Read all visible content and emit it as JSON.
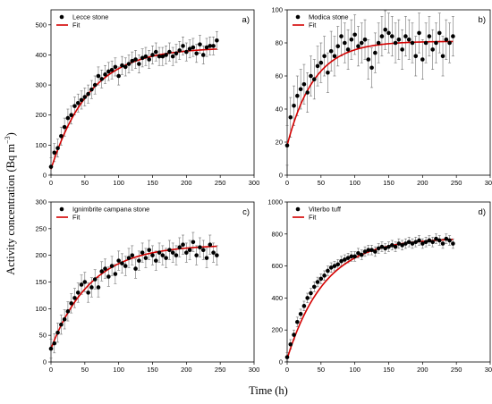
{
  "figure": {
    "ylabel_main": "Activity concentration (Bq m",
    "ylabel_unit_sup": "−3",
    "ylabel_close": ")",
    "xlabel": "Time (h)"
  },
  "legend_fit": "Fit",
  "colors": {
    "points": "#000000",
    "fit": "#d40000",
    "errorbar": "#555555"
  },
  "chart_data": [
    {
      "type": "scatter",
      "panel_label": "a)",
      "series": [
        {
          "name": "Lecce stone",
          "kind": "points",
          "x": [
            0,
            5,
            10,
            15,
            20,
            25,
            30,
            35,
            40,
            45,
            50,
            55,
            60,
            65,
            70,
            75,
            80,
            85,
            90,
            95,
            100,
            105,
            110,
            115,
            120,
            125,
            130,
            135,
            140,
            145,
            150,
            155,
            160,
            165,
            170,
            175,
            180,
            185,
            190,
            195,
            200,
            205,
            210,
            215,
            220,
            225,
            230,
            235,
            240,
            245
          ],
          "y": [
            28,
            75,
            90,
            130,
            160,
            190,
            200,
            230,
            240,
            250,
            260,
            270,
            285,
            300,
            330,
            320,
            335,
            345,
            350,
            360,
            330,
            365,
            360,
            370,
            380,
            385,
            370,
            390,
            395,
            385,
            400,
            410,
            395,
            395,
            400,
            410,
            395,
            405,
            415,
            430,
            410,
            420,
            425,
            405,
            435,
            400,
            425,
            430,
            430,
            448
          ],
          "err": 30
        },
        {
          "name": "Fit",
          "kind": "fit",
          "model": "y = A (1 - exp(-k x)) + B",
          "A": 405,
          "k": 0.0175,
          "B": 20,
          "x_range": [
            0,
            245
          ]
        }
      ],
      "xlim": [
        0,
        300
      ],
      "ylim": [
        0,
        550
      ],
      "xticks": [
        0,
        50,
        100,
        150,
        200,
        250,
        300
      ],
      "yticks": [
        0,
        100,
        200,
        300,
        400,
        500
      ],
      "legend": "top-left"
    },
    {
      "type": "scatter",
      "panel_label": "b)",
      "series": [
        {
          "name": "Modica stone",
          "kind": "points",
          "x": [
            0,
            5,
            10,
            15,
            20,
            25,
            30,
            35,
            40,
            45,
            50,
            55,
            60,
            65,
            70,
            75,
            80,
            85,
            90,
            95,
            100,
            105,
            110,
            115,
            120,
            125,
            130,
            135,
            140,
            145,
            150,
            155,
            160,
            165,
            170,
            175,
            180,
            185,
            190,
            195,
            200,
            205,
            210,
            215,
            220,
            225,
            230,
            235,
            240,
            245
          ],
          "y": [
            18,
            35,
            42,
            48,
            52,
            55,
            50,
            60,
            58,
            66,
            68,
            72,
            62,
            75,
            72,
            78,
            84,
            80,
            76,
            82,
            85,
            78,
            80,
            82,
            70,
            65,
            74,
            80,
            84,
            88,
            86,
            84,
            80,
            82,
            76,
            84,
            82,
            80,
            72,
            86,
            70,
            80,
            84,
            76,
            80,
            86,
            72,
            82,
            80,
            84
          ],
          "err": 12
        },
        {
          "name": "Fit",
          "kind": "fit",
          "model": "y = A (1 - exp(-k x)) + B",
          "A": 63,
          "k": 0.025,
          "B": 18,
          "x_range": [
            0,
            245
          ]
        }
      ],
      "xlim": [
        0,
        300
      ],
      "ylim": [
        0,
        100
      ],
      "xticks": [
        0,
        50,
        100,
        150,
        200,
        250,
        300
      ],
      "yticks": [
        0,
        20,
        40,
        60,
        80,
        100
      ],
      "legend": "top-left"
    },
    {
      "type": "scatter",
      "panel_label": "c)",
      "series": [
        {
          "name": "Ignimbrite campana stone",
          "kind": "points",
          "x": [
            0,
            5,
            10,
            15,
            20,
            25,
            30,
            35,
            40,
            45,
            50,
            55,
            60,
            65,
            70,
            75,
            80,
            85,
            90,
            95,
            100,
            105,
            110,
            115,
            120,
            125,
            130,
            135,
            140,
            145,
            150,
            155,
            160,
            165,
            170,
            175,
            180,
            185,
            190,
            195,
            200,
            205,
            210,
            215,
            220,
            225,
            230,
            235,
            240,
            245
          ],
          "y": [
            25,
            35,
            55,
            70,
            80,
            95,
            110,
            120,
            130,
            145,
            150,
            130,
            140,
            155,
            140,
            170,
            175,
            160,
            180,
            165,
            190,
            185,
            180,
            195,
            200,
            175,
            190,
            205,
            195,
            210,
            200,
            190,
            205,
            200,
            195,
            210,
            205,
            200,
            215,
            220,
            205,
            210,
            225,
            200,
            215,
            210,
            195,
            220,
            205,
            200
          ],
          "err": 18
        },
        {
          "name": "Fit",
          "kind": "fit",
          "model": "y = A (1 - exp(-k x)) + B",
          "A": 195,
          "k": 0.017,
          "B": 25,
          "x_range": [
            0,
            245
          ]
        }
      ],
      "xlim": [
        0,
        300
      ],
      "ylim": [
        0,
        300
      ],
      "xticks": [
        0,
        50,
        100,
        150,
        200,
        250,
        300
      ],
      "yticks": [
        0,
        50,
        100,
        150,
        200,
        250,
        300
      ],
      "legend": "top-left"
    },
    {
      "type": "scatter",
      "panel_label": "d)",
      "series": [
        {
          "name": "Viterbo tuff",
          "kind": "points",
          "x": [
            0,
            5,
            10,
            15,
            20,
            25,
            30,
            35,
            40,
            45,
            50,
            55,
            60,
            65,
            70,
            75,
            80,
            85,
            90,
            95,
            100,
            105,
            110,
            115,
            120,
            125,
            130,
            135,
            140,
            145,
            150,
            155,
            160,
            165,
            170,
            175,
            180,
            185,
            190,
            195,
            200,
            205,
            210,
            215,
            220,
            225,
            230,
            235,
            240,
            245
          ],
          "y": [
            30,
            110,
            170,
            250,
            300,
            350,
            400,
            430,
            470,
            500,
            520,
            540,
            570,
            590,
            600,
            610,
            630,
            640,
            650,
            660,
            660,
            680,
            670,
            690,
            700,
            700,
            690,
            710,
            720,
            710,
            720,
            730,
            720,
            740,
            730,
            740,
            750,
            740,
            750,
            760,
            740,
            750,
            760,
            750,
            770,
            760,
            740,
            770,
            760,
            740
          ],
          "err": 30
        },
        {
          "name": "Fit",
          "kind": "fit",
          "model": "y = A (1 - exp(-k x)) + B",
          "A": 755,
          "k": 0.018,
          "B": 20,
          "x_range": [
            0,
            245
          ]
        }
      ],
      "xlim": [
        0,
        300
      ],
      "ylim": [
        0,
        1000
      ],
      "xticks": [
        0,
        50,
        100,
        150,
        200,
        250,
        300
      ],
      "yticks": [
        0,
        200,
        400,
        600,
        800,
        1000
      ],
      "legend": "top-left"
    }
  ]
}
